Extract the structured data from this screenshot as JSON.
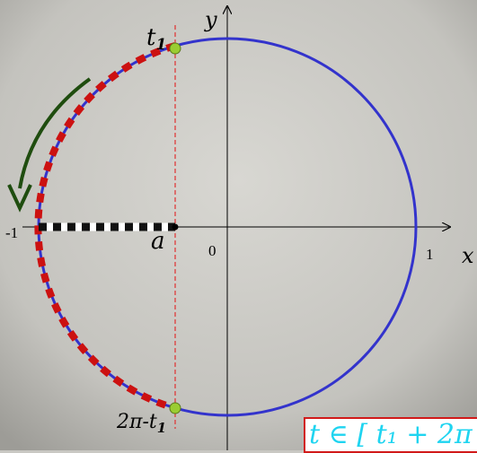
{
  "labels": {
    "y_axis": "y",
    "x_axis": "x",
    "origin": "0",
    "one": "1",
    "minus_one": "-1",
    "a": "a",
    "t1": "t",
    "t1_sub": "1",
    "bottom_prefix": "2π-t",
    "bottom_sub": "1"
  },
  "formula_box": {
    "text": "t ∈ [ t₁ + 2π"
  },
  "colors": {
    "circle": "#3333cc",
    "highlight_arc": "#cc1111",
    "arrow": "#1f4d0f",
    "points": "#9acd32",
    "segment_dark": "#111111",
    "segment_light": "#ffffff",
    "vertical_line": "#e03030",
    "box_border": "#d11a1a",
    "box_text": "#1fd4f0"
  },
  "icons": {
    "rotation_arrow": "curved-arrow-icon"
  }
}
